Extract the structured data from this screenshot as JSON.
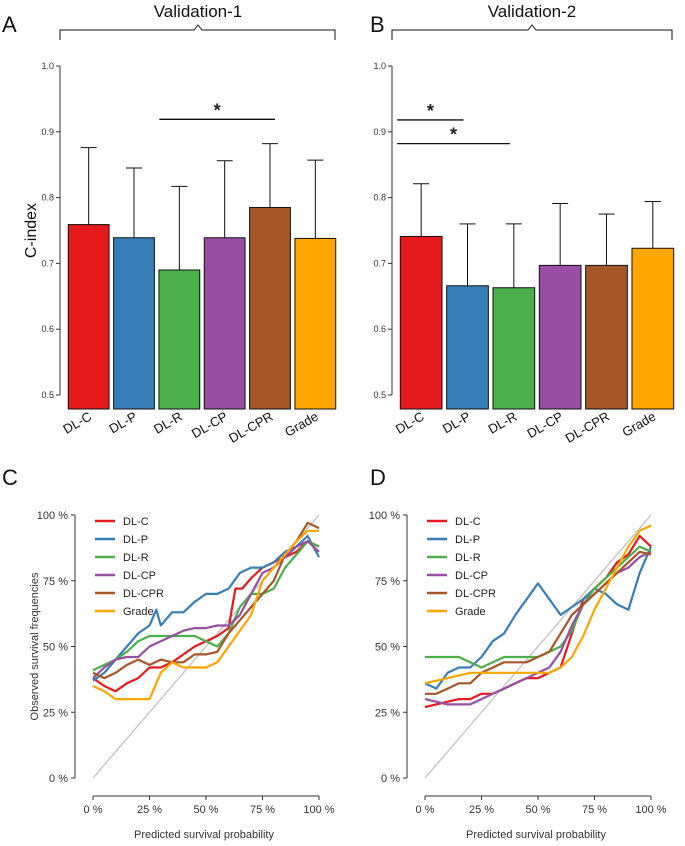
{
  "chart_data": [
    {
      "type": "bar",
      "panel": "A",
      "title": "Validation-1",
      "ylabel": "C-index",
      "ylim": [
        0.5,
        1.0
      ],
      "yticks": [
        "0.5",
        "0.6",
        "0.7",
        "0.8",
        "0.9",
        "1.0"
      ],
      "categories": [
        "DL-C",
        "DL-P",
        "DL-R",
        "DL-CP",
        "DL-CPR",
        "Grade"
      ],
      "values": [
        0.759,
        0.739,
        0.69,
        0.739,
        0.785,
        0.738
      ],
      "error_upper": [
        0.876,
        0.845,
        0.817,
        0.856,
        0.882,
        0.857
      ],
      "colors": [
        "#e41a1c",
        "#377eb8",
        "#4daf4a",
        "#984ea3",
        "#a65628",
        "#ffa500"
      ],
      "significance": [
        {
          "from": "DL-R",
          "to": "DL-CPR",
          "label": "*",
          "level": 0.919
        }
      ]
    },
    {
      "type": "bar",
      "panel": "B",
      "title": "Validation-2",
      "ylim": [
        0.5,
        1.0
      ],
      "yticks": [
        "0.5",
        "0.6",
        "0.7",
        "0.8",
        "0.9",
        "1.0"
      ],
      "categories": [
        "DL-C",
        "DL-P",
        "DL-R",
        "DL-CP",
        "DL-CPR",
        "Grade"
      ],
      "values": [
        0.741,
        0.666,
        0.663,
        0.697,
        0.697,
        0.723
      ],
      "error_upper": [
        0.821,
        0.76,
        0.76,
        0.791,
        0.775,
        0.794
      ],
      "colors": [
        "#e41a1c",
        "#377eb8",
        "#4daf4a",
        "#984ea3",
        "#a65628",
        "#ffa500"
      ],
      "significance": [
        {
          "from": "DL-C",
          "to": "DL-P",
          "label": "*",
          "level": 0.918
        },
        {
          "from": "DL-C",
          "to": "DL-R",
          "label": "*",
          "level": 0.882
        }
      ]
    },
    {
      "type": "line",
      "panel": "C",
      "xlabel": "Predicted survival probability",
      "ylabel": "Observed survival frequencies",
      "xticks": [
        "0 %",
        "25 %",
        "50 %",
        "75 %",
        "100 %"
      ],
      "yticks": [
        "0 %",
        "25 %",
        "50 %",
        "75 %",
        "100 %"
      ],
      "xlim": [
        0,
        100
      ],
      "ylim": [
        0,
        100
      ],
      "reference_line": true,
      "series": [
        {
          "name": "DL-C",
          "color": "#e41a1c",
          "x": [
            0,
            5,
            10,
            15,
            20,
            25,
            30,
            35,
            40,
            45,
            50,
            55,
            60,
            63,
            66,
            70,
            75,
            80,
            85,
            90,
            95,
            100
          ],
          "y": [
            38,
            35,
            33,
            36,
            38,
            42,
            42,
            44,
            47,
            50,
            52,
            54,
            57,
            72,
            72,
            76,
            80,
            82,
            84,
            86,
            90,
            88
          ]
        },
        {
          "name": "DL-P",
          "color": "#377eb8",
          "x": [
            0,
            5,
            10,
            15,
            20,
            25,
            28,
            30,
            35,
            40,
            45,
            50,
            55,
            60,
            65,
            70,
            75,
            80,
            85,
            90,
            95,
            100
          ],
          "y": [
            37,
            40,
            45,
            50,
            55,
            58,
            64,
            58,
            63,
            63,
            67,
            70,
            70,
            72,
            78,
            80,
            80,
            82,
            86,
            88,
            92,
            84
          ]
        },
        {
          "name": "DL-R",
          "color": "#4daf4a",
          "x": [
            0,
            5,
            10,
            15,
            20,
            25,
            30,
            35,
            40,
            45,
            50,
            55,
            60,
            65,
            70,
            75,
            80,
            85,
            90,
            95,
            100
          ],
          "y": [
            41,
            43,
            45,
            48,
            52,
            54,
            54,
            54,
            54,
            54,
            52,
            50,
            55,
            65,
            70,
            70,
            72,
            80,
            85,
            90,
            88
          ]
        },
        {
          "name": "DL-CP",
          "color": "#984ea3",
          "x": [
            0,
            5,
            10,
            15,
            20,
            25,
            30,
            35,
            40,
            45,
            50,
            55,
            60,
            65,
            70,
            75,
            80,
            85,
            90,
            95,
            100
          ],
          "y": [
            38,
            42,
            45,
            46,
            46,
            50,
            52,
            54,
            56,
            57,
            57,
            58,
            58,
            62,
            70,
            78,
            80,
            84,
            88,
            90,
            86
          ]
        },
        {
          "name": "DL-CPR",
          "color": "#a65628",
          "x": [
            0,
            5,
            10,
            15,
            20,
            25,
            30,
            35,
            40,
            45,
            50,
            55,
            60,
            65,
            70,
            75,
            80,
            85,
            90,
            95,
            100
          ],
          "y": [
            40,
            38,
            40,
            43,
            45,
            43,
            45,
            44,
            44,
            47,
            47,
            48,
            55,
            60,
            65,
            70,
            75,
            85,
            90,
            97,
            95
          ]
        },
        {
          "name": "Grade",
          "color": "#ffa500",
          "x": [
            0,
            5,
            10,
            15,
            20,
            25,
            30,
            35,
            40,
            45,
            50,
            55,
            60,
            65,
            70,
            75,
            80,
            85,
            90,
            95,
            100
          ],
          "y": [
            35,
            33,
            30,
            30,
            30,
            30,
            40,
            44,
            42,
            42,
            42,
            44,
            50,
            56,
            62,
            75,
            80,
            85,
            90,
            94,
            94
          ]
        }
      ]
    },
    {
      "type": "line",
      "panel": "D",
      "xlabel": "Predicted survival probability",
      "xticks": [
        "0 %",
        "25 %",
        "50 %",
        "75 %",
        "100 %"
      ],
      "yticks": [
        "0 %",
        "25 %",
        "50 %",
        "75 %",
        "100 %"
      ],
      "xlim": [
        0,
        100
      ],
      "ylim": [
        0,
        100
      ],
      "reference_line": true,
      "series": [
        {
          "name": "DL-C",
          "color": "#e41a1c",
          "x": [
            0,
            5,
            10,
            15,
            20,
            25,
            30,
            35,
            40,
            45,
            50,
            55,
            60,
            65,
            70,
            75,
            80,
            85,
            90,
            95,
            100
          ],
          "y": [
            27,
            28,
            29,
            30,
            30,
            32,
            32,
            34,
            36,
            38,
            38,
            40,
            42,
            55,
            68,
            72,
            76,
            82,
            85,
            92,
            88
          ]
        },
        {
          "name": "DL-P",
          "color": "#377eb8",
          "x": [
            0,
            5,
            10,
            15,
            20,
            25,
            30,
            35,
            40,
            45,
            50,
            55,
            60,
            65,
            70,
            75,
            80,
            85,
            90,
            95,
            100
          ],
          "y": [
            36,
            34,
            40,
            42,
            42,
            46,
            52,
            55,
            62,
            68,
            74,
            68,
            62,
            65,
            68,
            72,
            70,
            66,
            64,
            78,
            88
          ]
        },
        {
          "name": "DL-R",
          "color": "#4daf4a",
          "x": [
            0,
            5,
            10,
            15,
            20,
            25,
            30,
            35,
            40,
            45,
            50,
            55,
            60,
            65,
            70,
            75,
            80,
            85,
            90,
            95,
            100
          ],
          "y": [
            46,
            46,
            46,
            46,
            44,
            42,
            44,
            46,
            46,
            46,
            46,
            48,
            50,
            56,
            66,
            72,
            76,
            80,
            84,
            88,
            86
          ]
        },
        {
          "name": "DL-CP",
          "color": "#984ea3",
          "x": [
            0,
            5,
            10,
            15,
            20,
            25,
            30,
            35,
            40,
            45,
            50,
            55,
            60,
            65,
            70,
            75,
            80,
            85,
            90,
            95,
            100
          ],
          "y": [
            30,
            29,
            28,
            28,
            28,
            30,
            32,
            34,
            36,
            38,
            40,
            42,
            48,
            58,
            66,
            70,
            74,
            78,
            80,
            84,
            86
          ]
        },
        {
          "name": "DL-CPR",
          "color": "#a65628",
          "x": [
            0,
            5,
            10,
            15,
            20,
            25,
            30,
            35,
            40,
            45,
            50,
            55,
            60,
            65,
            70,
            75,
            80,
            85,
            90,
            95,
            100
          ],
          "y": [
            32,
            32,
            34,
            36,
            36,
            40,
            42,
            44,
            44,
            44,
            46,
            48,
            55,
            62,
            66,
            70,
            74,
            78,
            82,
            86,
            85
          ]
        },
        {
          "name": "Grade",
          "color": "#ffa500",
          "x": [
            0,
            5,
            10,
            15,
            20,
            25,
            30,
            35,
            40,
            45,
            50,
            55,
            60,
            65,
            70,
            75,
            80,
            85,
            90,
            95,
            100
          ],
          "y": [
            36,
            37,
            38,
            39,
            40,
            40,
            40,
            40,
            40,
            40,
            40,
            40,
            42,
            46,
            54,
            64,
            72,
            80,
            88,
            94,
            96
          ]
        }
      ]
    }
  ]
}
